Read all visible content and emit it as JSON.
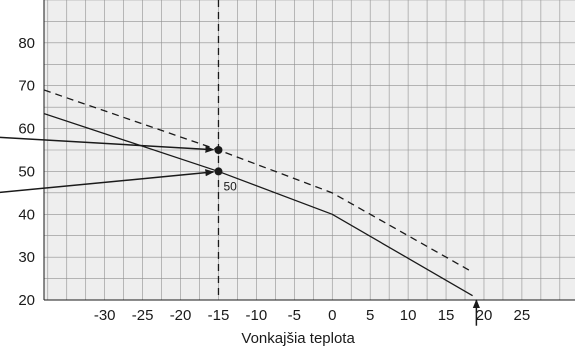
{
  "chart_data": {
    "type": "line",
    "title": "",
    "xlabel": "Vonkajšia teplota",
    "ylabel": "",
    "xlim": [
      -38,
      32
    ],
    "ylim": [
      20,
      90
    ],
    "grid": true,
    "x_ticks": [
      -30,
      -25,
      -20,
      -15,
      -10,
      -5,
      0,
      5,
      10,
      15,
      20,
      25
    ],
    "y_ticks": [
      20,
      30,
      40,
      50,
      60,
      70,
      80
    ],
    "series": [
      {
        "style": "solid",
        "x": [
          -38,
          -15,
          0,
          18.5
        ],
        "y": [
          63.5,
          50,
          40,
          21
        ]
      },
      {
        "style": "dashed",
        "x": [
          -38,
          -15,
          0,
          18.5
        ],
        "y": [
          69,
          55,
          45,
          26.5
        ]
      }
    ],
    "reference_lines": [
      {
        "axis": "x",
        "value": -15,
        "style": "dashed"
      }
    ],
    "points": [
      {
        "x": -15,
        "y": 55
      },
      {
        "x": -15,
        "y": 50
      }
    ],
    "point_labels": [
      {
        "x": -15,
        "y": 50,
        "text": "50"
      }
    ],
    "pointer_arrows": [
      {
        "from_x": -45,
        "from_y": 58,
        "to_x": -15,
        "to_y": 55
      },
      {
        "from_x": -45,
        "from_y": 45,
        "to_x": -15,
        "to_y": 50
      },
      {
        "from_x": 19,
        "from_y": 14,
        "to_x": 19,
        "to_y": 20
      }
    ],
    "colors": {
      "background": "#ffffff",
      "plot_background": "#eeeeee",
      "grid": "#909090",
      "line": "#1a1a1a"
    }
  }
}
